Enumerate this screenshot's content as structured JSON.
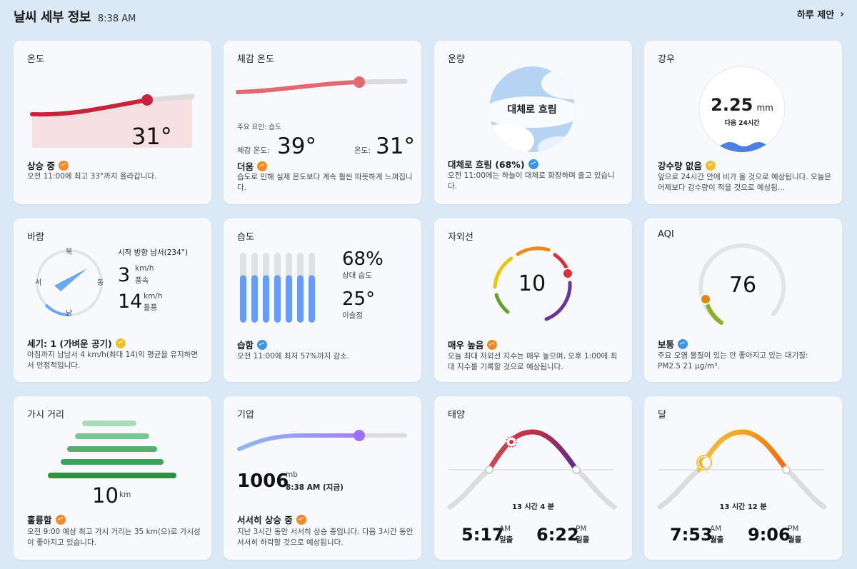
{
  "header": {
    "title": "날씨 세부 정보",
    "time": "8:38 AM",
    "daily_link": "하루 제안",
    "chevron": "chevron-right-icon"
  },
  "temp": {
    "title": "온도",
    "value": "31°",
    "status": "상승 중",
    "desc": "오전 11:00에 최고 33°까지 올라갑니다."
  },
  "feels": {
    "title": "체감 온도",
    "factor": "주요 요인: 습도",
    "feels_label": "체감 온도:",
    "feels_value": "39°",
    "temp_label": "온도:",
    "temp_value": "31°",
    "status": "더움",
    "desc": "습도로 인해 실제 온도보다 계속 훨씬 따뜻하게 느껴집니다."
  },
  "cloud": {
    "title": "운량",
    "center": "대체로 흐림",
    "status": "대체로 흐림 (68%)",
    "desc": "오전 11:00에는 하늘이 대체로 화창하며 줄고 있습니다."
  },
  "rain": {
    "title": "강우",
    "value": "2.25",
    "unit": "mm",
    "period": "다음 24시간",
    "status": "강수량 없음",
    "desc": "앞으로 24시간 안에 비가 올 것으로 예상됩니다. 오늘은 어제보다 강수량이 적을 것으로 예상됩..."
  },
  "wind": {
    "title": "바람",
    "dir_n": "북",
    "dir_s": "남",
    "dir_e": "동",
    "dir_w": "서",
    "from": "시작 방향 남서(234°)",
    "speed": "3",
    "speed_unit": "km/h",
    "speed_label": "풍속",
    "gust": "14",
    "gust_unit": "km/h",
    "gust_label": "돌풍",
    "status": "세기: 1 (가벼운 공기)",
    "desc": "아침까지 남남서 4 km/h(최대 14)의 평균을 유지하면서 안정적입니다.",
    "direction_deg": 234
  },
  "humidity": {
    "title": "습도",
    "rh": "68%",
    "rh_label": "상대 습도",
    "dew": "25°",
    "dew_label": "이슬점",
    "status": "습함",
    "desc": "오전 11:00에 최저 57%까지 감소.",
    "level": 0.68
  },
  "uv": {
    "title": "자외선",
    "value": "10",
    "status": "매우 높음",
    "desc": "오늘 최대 자외선 지수는 매우 높으며, 오후 1:00에 최대 지수를 기록할 것으로 예상됩니다."
  },
  "aqi": {
    "title": "AQI",
    "value": "76",
    "status": "보통",
    "desc": "주요 오염 물질이 있는 안 좋아지고 있는 대기질: PM2.5 21 μg/m³."
  },
  "visibility": {
    "title": "가시 거리",
    "value": "10",
    "unit": "km",
    "status": "훌륭함",
    "desc": "오전 9:00 예상 최고 가시 거리는 35 km(으)로 가시성이 좋아지고 있습니다."
  },
  "pressure": {
    "title": "기압",
    "value": "1006",
    "unit": "mb",
    "when": "8:38 AM (지금)",
    "status": "서서히 상승 중",
    "desc": "지난 3시간 동안 서서히 상승 중입니다. 다음 3시간 동안 서서히 하락할 것으로 예상됩니다."
  },
  "sun": {
    "title": "태양",
    "duration": "13 시간 4 분",
    "rise": "5:17",
    "rise_ampm": "AM",
    "rise_label": "일출",
    "set": "6:22",
    "set_ampm": "PM",
    "set_label": "일몰"
  },
  "moon": {
    "title": "달",
    "duration": "13 시간 12 분",
    "rise": "7:53",
    "rise_ampm": "AM",
    "rise_label": "월출",
    "set": "9:06",
    "set_ampm": "PM",
    "set_label": "월몰"
  },
  "colors": {
    "bg": "#dbe8f6",
    "card": "#f7f9fc",
    "temp_red": "#c8233a",
    "feels_red": "#e06a72",
    "humidity_blue": "#6b9cf5",
    "pressure_purple": "#9d7cf2"
  }
}
